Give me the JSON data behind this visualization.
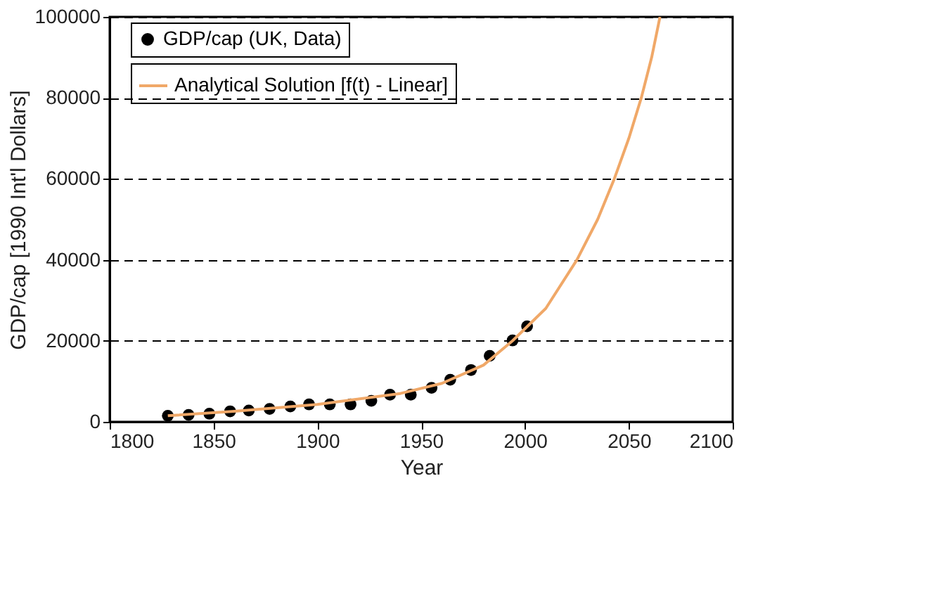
{
  "chart_data": {
    "type": "scatter",
    "xlabel": "Year",
    "ylabel": "GDP/cap [1990 Int'l Dollars]",
    "xlim": [
      1800,
      2100
    ],
    "xticks": [
      1800,
      1850,
      1900,
      1950,
      2000,
      2050,
      2100
    ],
    "ylim": [
      0,
      100000
    ],
    "yticks": [
      0,
      20000,
      40000,
      60000,
      80000,
      100000
    ],
    "grid": "y",
    "legend": "top left",
    "series": [
      {
        "name": "GDP/cap (UK, Data)",
        "marker": "circle",
        "color": "#000000",
        "x": [
          1828,
          1838,
          1848,
          1858,
          1867,
          1877,
          1887,
          1896,
          1906,
          1916,
          1926,
          1935,
          1945,
          1955,
          1964,
          1974,
          1983,
          1994,
          2001
        ],
        "values": [
          1500,
          1700,
          2000,
          2600,
          2800,
          3200,
          3800,
          4300,
          4300,
          4300,
          5200,
          6700,
          6700,
          8400,
          10400,
          12800,
          16300,
          20100,
          23600
        ]
      },
      {
        "name": "Analytical Solution [f(t) - Linear]",
        "type": "line",
        "line_style": "solid",
        "color": "#f0a868",
        "x": [
          1828,
          1860,
          1900,
          1940,
          1960,
          1980,
          1994,
          2010,
          2025,
          2035,
          2043,
          2050,
          2056,
          2061,
          2065
        ],
        "values": [
          1500,
          2600,
          4300,
          7000,
          9500,
          14000,
          20000,
          28000,
          40000,
          50000,
          60000,
          70000,
          80000,
          90000,
          100000
        ]
      }
    ]
  }
}
